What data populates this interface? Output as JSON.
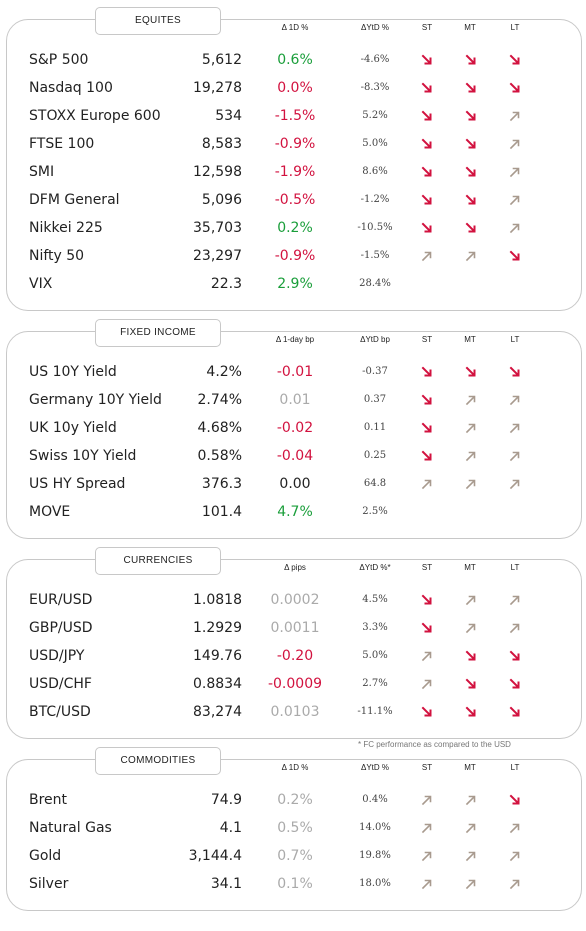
{
  "colors": {
    "up": "#1a9e3a",
    "down": "#d2123f",
    "flat": "#aaaaaa",
    "trend_down": "#d2123f",
    "trend_up": "#a89a8e"
  },
  "sections": [
    {
      "title": "EQUITES",
      "change_header": "Δ 1D %",
      "ytd_header": "ΔYtD %",
      "st_header": "ST",
      "mt_header": "MT",
      "lt_header": "LT",
      "rows": [
        {
          "name": "S&P 500",
          "level": "5,612",
          "change": "0.6%",
          "change_tone": "pos",
          "ytd": "-4.6%",
          "st": "down",
          "mt": "down",
          "lt": "down"
        },
        {
          "name": "Nasdaq 100",
          "level": "19,278",
          "change": "0.0%",
          "change_tone": "neg",
          "ytd": "-8.3%",
          "st": "down",
          "mt": "down",
          "lt": "down"
        },
        {
          "name": "STOXX Europe 600",
          "level": "534",
          "change": "-1.5%",
          "change_tone": "neg",
          "ytd": "5.2%",
          "st": "down",
          "mt": "down",
          "lt": "up"
        },
        {
          "name": "FTSE 100",
          "level": "8,583",
          "change": "-0.9%",
          "change_tone": "neg",
          "ytd": "5.0%",
          "st": "down",
          "mt": "down",
          "lt": "up"
        },
        {
          "name": "SMI",
          "level": "12,598",
          "change": "-1.9%",
          "change_tone": "neg",
          "ytd": "8.6%",
          "st": "down",
          "mt": "down",
          "lt": "up"
        },
        {
          "name": "DFM General",
          "level": "5,096",
          "change": "-0.5%",
          "change_tone": "neg",
          "ytd": "-1.2%",
          "st": "down",
          "mt": "down",
          "lt": "up"
        },
        {
          "name": "Nikkei 225",
          "level": "35,703",
          "change": "0.2%",
          "change_tone": "pos",
          "ytd": "-10.5%",
          "st": "down",
          "mt": "down",
          "lt": "up"
        },
        {
          "name": "Nifty  50",
          "level": "23,297",
          "change": "-0.9%",
          "change_tone": "neg",
          "ytd": "-1.5%",
          "st": "up",
          "mt": "up",
          "lt": "down"
        },
        {
          "name": "VIX",
          "level": "22.3",
          "change": "2.9%",
          "change_tone": "pos",
          "ytd": "28.4%",
          "st": "",
          "mt": "",
          "lt": ""
        }
      ]
    },
    {
      "title": "FIXED INCOME",
      "change_header": "Δ 1-day bp",
      "ytd_header": "ΔYtD bp",
      "st_header": "ST",
      "mt_header": "MT",
      "lt_header": "LT",
      "rows": [
        {
          "name": "US 10Y Yield",
          "level": "4.2%",
          "change": "-0.01",
          "change_tone": "neg",
          "ytd": "-0.37",
          "st": "down",
          "mt": "down",
          "lt": "down"
        },
        {
          "name": "Germany 10Y Yield",
          "level": "2.74%",
          "change": "0.01",
          "change_tone": "neu",
          "ytd": "0.37",
          "st": "down",
          "mt": "up",
          "lt": "up"
        },
        {
          "name": "UK 10y Yield",
          "level": "4.68%",
          "change": "-0.02",
          "change_tone": "neg",
          "ytd": "0.11",
          "st": "down",
          "mt": "up",
          "lt": "up"
        },
        {
          "name": "Swiss 10Y Yield",
          "level": "0.58%",
          "change": "-0.04",
          "change_tone": "neg",
          "ytd": "0.25",
          "st": "down",
          "mt": "up",
          "lt": "up"
        },
        {
          "name": "US HY Spread",
          "level": "376.3",
          "change": "0.00",
          "change_tone": "zero",
          "ytd": "64.8",
          "st": "up",
          "mt": "up",
          "lt": "up"
        },
        {
          "name": "MOVE",
          "level": "101.4",
          "change": "4.7%",
          "change_tone": "pos",
          "ytd": "2.5%",
          "st": "",
          "mt": "",
          "lt": ""
        }
      ]
    },
    {
      "title": "CURRENCIES",
      "change_header": "Δ pips",
      "ytd_header": "ΔYtD %*",
      "st_header": "ST",
      "mt_header": "MT",
      "lt_header": "LT",
      "rows": [
        {
          "name": "EUR/USD",
          "level": "1.0818",
          "change": "0.0002",
          "change_tone": "neu",
          "ytd": "4.5%",
          "st": "down",
          "mt": "up",
          "lt": "up"
        },
        {
          "name": "GBP/USD",
          "level": "1.2929",
          "change": "0.0011",
          "change_tone": "neu",
          "ytd": "3.3%",
          "st": "down",
          "mt": "up",
          "lt": "up"
        },
        {
          "name": "USD/JPY",
          "level": "149.76",
          "change": "-0.20",
          "change_tone": "neg",
          "ytd": "5.0%",
          "st": "up",
          "mt": "down",
          "lt": "down"
        },
        {
          "name": "USD/CHF",
          "level": "0.8834",
          "change": "-0.0009",
          "change_tone": "neg",
          "ytd": "2.7%",
          "st": "up",
          "mt": "down",
          "lt": "down"
        },
        {
          "name": "BTC/USD",
          "level": "83,274",
          "change": "0.0103",
          "change_tone": "neu",
          "ytd": "-11.1%",
          "st": "down",
          "mt": "down",
          "lt": "down"
        }
      ]
    },
    {
      "title": "COMMODITIES",
      "change_header": "Δ 1D %",
      "ytd_header": "ΔYtD %",
      "st_header": "ST",
      "mt_header": "MT",
      "lt_header": "LT",
      "rows": [
        {
          "name": "Brent",
          "level": "74.9",
          "change": "0.2%",
          "change_tone": "neu",
          "ytd": "0.4%",
          "st": "up",
          "mt": "up",
          "lt": "down"
        },
        {
          "name": "Natural Gas",
          "level": "4.1",
          "change": "0.5%",
          "change_tone": "neu",
          "ytd": "14.0%",
          "st": "up",
          "mt": "up",
          "lt": "up"
        },
        {
          "name": "Gold",
          "level": "3,144.4",
          "change": "0.7%",
          "change_tone": "neu",
          "ytd": "19.8%",
          "st": "up",
          "mt": "up",
          "lt": "up"
        },
        {
          "name": "Silver",
          "level": "34.1",
          "change": "0.1%",
          "change_tone": "neu",
          "ytd": "18.0%",
          "st": "up",
          "mt": "up",
          "lt": "up"
        }
      ]
    }
  ],
  "footnote": "* FC performance as compared to the USD"
}
